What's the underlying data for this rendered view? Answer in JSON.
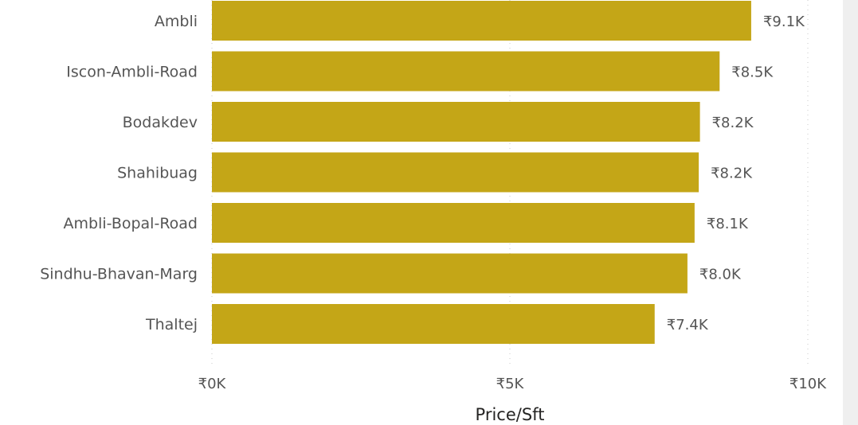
{
  "chart_data": {
    "type": "bar",
    "orientation": "horizontal",
    "categories": [
      "Ambli",
      "Iscon-Ambli-Road",
      "Bodakdev",
      "Shahibuag",
      "Ambli-Bopal-Road",
      "Sindhu-Bhavan-Marg",
      "Thaltej"
    ],
    "values": [
      9050,
      8520,
      8190,
      8170,
      8100,
      7980,
      7430
    ],
    "data_labels": [
      "₹9.1K",
      "₹8.5K",
      "₹8.2K",
      "₹8.2K",
      "₹8.1K",
      "₹8.0K",
      "₹7.4K"
    ],
    "xlabel": "Price/Sft",
    "ylabel": "",
    "xlim": [
      0,
      10000
    ],
    "x_ticks": [
      0,
      5000,
      10000
    ],
    "x_tick_labels": [
      "₹0K",
      "₹5K",
      "₹10K"
    ],
    "grid": true,
    "bar_color": "#c4a617"
  }
}
